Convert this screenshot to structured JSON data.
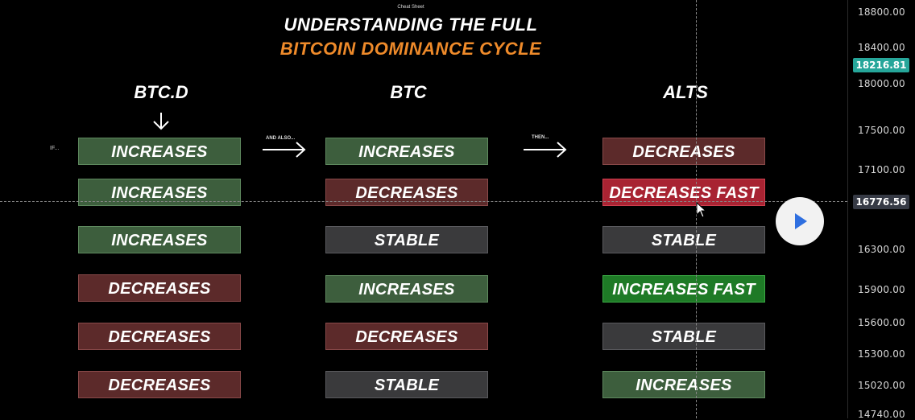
{
  "header": {
    "sheet_label": "Cheat Sheet",
    "title_line1": "UNDERSTANDING THE FULL",
    "title_line2": "BITCOIN DOMINANCE CYCLE"
  },
  "columns": [
    {
      "label": "BTC.D"
    },
    {
      "label": "BTC"
    },
    {
      "label": "ALTS"
    }
  ],
  "arrows": {
    "first_label": "AND ALSO...",
    "second_label": "THEN...",
    "row_marker": "IF..."
  },
  "rows": [
    {
      "btcd": "INCREASES",
      "btc": "INCREASES",
      "alts": "DECREASES"
    },
    {
      "btcd": "INCREASES",
      "btc": "DECREASES",
      "alts": "DECREASES FAST"
    },
    {
      "btcd": "INCREASES",
      "btc": "STABLE",
      "alts": "STABLE"
    },
    {
      "btcd": "DECREASES",
      "btc": "INCREASES",
      "alts": "INCREASES FAST"
    },
    {
      "btcd": "DECREASES",
      "btc": "DECREASES",
      "alts": "STABLE"
    },
    {
      "btcd": "DECREASES",
      "btc": "STABLE",
      "alts": "INCREASES"
    }
  ],
  "price_axis": {
    "ticks": [
      "18800.00",
      "18400.00",
      "18000.00",
      "17500.00",
      "17100.00",
      "16300.00",
      "15900.00",
      "15600.00",
      "15300.00",
      "15020.00",
      "14740.00"
    ],
    "current_price": "18216.81",
    "cursor_price": "16776.56"
  },
  "colors": {
    "increase": "#3d5e3d",
    "decrease": "#5c2a2a",
    "stable": "#3a3a3c",
    "decrease_fast": "#a82332",
    "increase_fast": "#1e7a26",
    "title_accent": "#ee8a2a",
    "current_price_badge": "#26a69a"
  },
  "icons": {
    "play": "play-icon",
    "cursor": "mouse-pointer-icon"
  }
}
